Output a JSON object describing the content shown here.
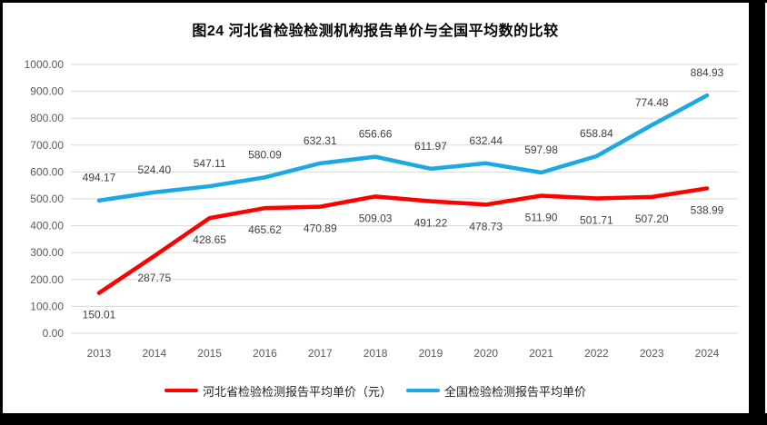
{
  "title": "图24  河北省检验检测机构报告单价与全国平均数的比较",
  "colors": {
    "hebei_series": "#FF0000",
    "national_series": "#1CA9E2",
    "gridline": "#D9D9D9",
    "axis_text": "#595959",
    "data_label_text": "#3F3F3F",
    "frame_border": "#000000",
    "background": "#FFFFFF"
  },
  "chart_data": {
    "type": "line",
    "title": "图24  河北省检验检测机构报告单价与全国平均数的比较",
    "categories": [
      "2013",
      "2014",
      "2015",
      "2016",
      "2017",
      "2018",
      "2019",
      "2020",
      "2021",
      "2022",
      "2023",
      "2024"
    ],
    "series": [
      {
        "name": "全国检验检测报告平均单价",
        "color": "#1CA9E2",
        "label_position": "above",
        "values": [
          494.17,
          524.4,
          547.11,
          580.09,
          632.31,
          656.66,
          611.97,
          632.44,
          597.98,
          658.84,
          774.48,
          884.93
        ]
      },
      {
        "name": "河北省检验检测报告平均单价（元）",
        "color": "#FF0000",
        "label_position": "below",
        "values": [
          150.01,
          287.75,
          428.65,
          465.62,
          470.89,
          509.03,
          491.22,
          478.73,
          511.9,
          501.71,
          507.2,
          538.99
        ]
      }
    ],
    "xlabel": "",
    "ylabel": "",
    "ylim": [
      0,
      1000
    ],
    "y_tick_step": 100,
    "y_tick_labels": [
      "0.00",
      "100.00",
      "200.00",
      "300.00",
      "400.00",
      "500.00",
      "600.00",
      "700.00",
      "800.00",
      "900.00",
      "1000.00"
    ],
    "grid": true,
    "data_labels": true,
    "legend_position": "bottom",
    "legend": [
      "河北省检验检测报告平均单价（元）",
      "全国检验检测报告平均单价"
    ]
  }
}
